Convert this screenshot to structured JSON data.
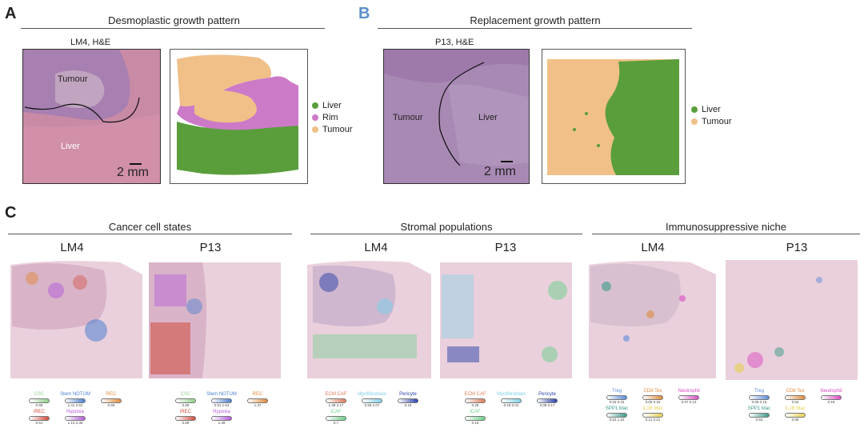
{
  "panel_a": {
    "letter": "A",
    "title": "Desmoplastic growth pattern",
    "sample_label": "LM4, H&E",
    "region_tumour": "Tumour",
    "region_liver": "Liver",
    "scale_text": "2 mm",
    "legend": [
      {
        "label": "Liver",
        "color": "#5a9e3c"
      },
      {
        "label": "Rim",
        "color": "#cc7ac8"
      },
      {
        "label": "Tumour",
        "color": "#f0c088"
      }
    ]
  },
  "panel_b": {
    "letter": "B",
    "letter_color": "#5b8fc8",
    "title": "Replacement growth pattern",
    "sample_label": "P13, H&E",
    "region_tumour": "Tumour",
    "region_liver": "Liver",
    "scale_text": "2 mm",
    "legend": [
      {
        "label": "Liver",
        "color": "#5a9e3c"
      },
      {
        "label": "Tumour",
        "color": "#f0c088"
      }
    ]
  },
  "panel_c": {
    "letter": "C",
    "groups": [
      {
        "title": "Cancer cell states",
        "samples": [
          "LM4",
          "P13"
        ],
        "keys": [
          [
            {
              "name": "CSC",
              "color": "#8fd08a",
              "val": "0.68"
            },
            {
              "name": "Stem NOTUM",
              "color": "#4a7fd0",
              "val": "1.41   2.81"
            },
            {
              "name": "REC",
              "color": "#e08a3a",
              "val": "0.69"
            },
            {
              "name": "iREC",
              "color": "#d24a3a",
              "val": "0.51"
            },
            {
              "name": "Hypoxia",
              "color": "#b45ad8",
              "val": "1.13   2.35"
            }
          ],
          [
            {
              "name": "CSC",
              "color": "#8fd08a",
              "val": "0.59"
            },
            {
              "name": "Stem NOTUM",
              "color": "#4a7fd0",
              "val": "0.51   1.53"
            },
            {
              "name": "REC",
              "color": "#e08a3a",
              "val": "1.37"
            },
            {
              "name": "iREC",
              "color": "#d24a3a",
              "val": "0.69"
            },
            {
              "name": "Hypoxia",
              "color": "#b45ad8",
              "val": "1.49"
            }
          ]
        ]
      },
      {
        "title": "Stromal populations",
        "samples": [
          "LM4",
          "P13"
        ],
        "keys": [
          [
            {
              "name": "ECM CAF",
              "color": "#e07a5a",
              "val": "1.38   2.17"
            },
            {
              "name": "Myofibroblast",
              "color": "#7fd0e8",
              "val": "0.56   1.07"
            },
            {
              "name": "Pericyte",
              "color": "#2a3fa8",
              "val": "0.18"
            },
            {
              "name": "iCAF",
              "color": "#6ad08a",
              "val": "0.7"
            }
          ],
          [
            {
              "name": "ECM CAF",
              "color": "#e07a5a",
              "val": "0.28"
            },
            {
              "name": "Myofibroblast",
              "color": "#7fd0e8",
              "val": "0.18   0.31"
            },
            {
              "name": "Pericyte",
              "color": "#2a3fa8",
              "val": "0.08   0.17"
            },
            {
              "name": "iCAF",
              "color": "#6ad08a",
              "val": "0.16"
            }
          ]
        ]
      },
      {
        "title": "Immunosuppressive niche",
        "samples": [
          "LM4",
          "P13"
        ],
        "keys": [
          [
            {
              "name": "Treg",
              "color": "#5a8ad8",
              "val": "0.04   0.15"
            },
            {
              "name": "CD8 Tex",
              "color": "#e08a3a",
              "val": "0.05   0.15"
            },
            {
              "name": "Neutrophil",
              "color": "#d84ac0",
              "val": "0.07   0.13"
            },
            {
              "name": "SPP1 Mac",
              "color": "#3a9a8a",
              "val": "0.62   1.22"
            },
            {
              "name": "IL1B Mac",
              "color": "#e8d050",
              "val": "0.11   0.21"
            }
          ],
          [
            {
              "name": "Treg",
              "color": "#5a8ad8",
              "val": "0.06   0.15"
            },
            {
              "name": "CD8 Tex",
              "color": "#e08a3a",
              "val": "0.02"
            },
            {
              "name": "Neutrophil",
              "color": "#d84ac0",
              "val": "0.15"
            },
            {
              "name": "SPP1 Mac",
              "color": "#3a9a8a",
              "val": "0.53"
            },
            {
              "name": "IL1B Mac",
              "color": "#e8d050",
              "val": "0.08"
            }
          ]
        ]
      }
    ]
  }
}
